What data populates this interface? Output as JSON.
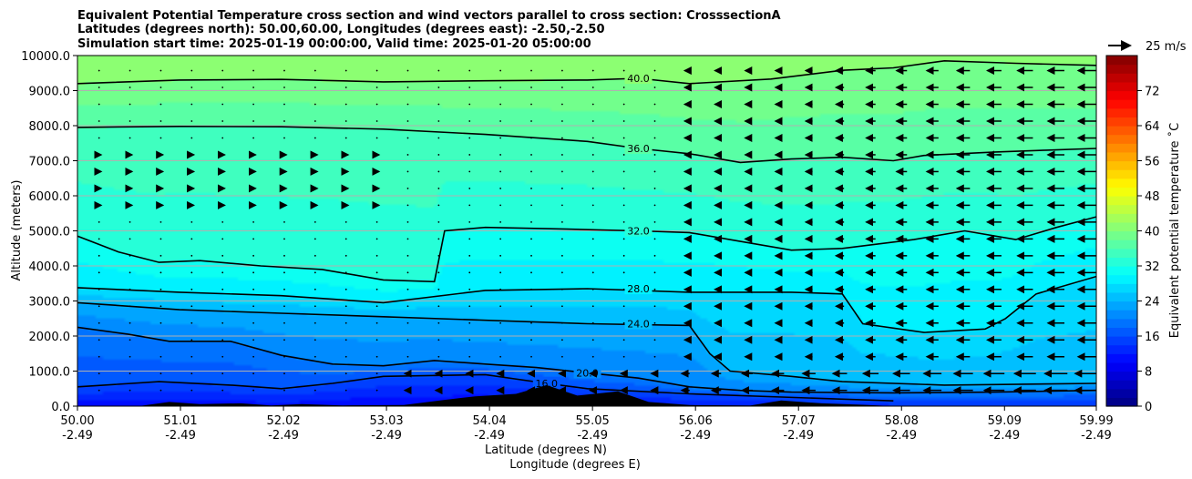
{
  "chart_data": {
    "type": "heatmap",
    "title": [
      "Equivalent Potential Temperature cross section and wind vectors parallel to cross section: CrosssectionA",
      "Latitudes (degrees north): 50.00,60.00, Longitudes (degrees east): -2.50,-2.50",
      "Simulation start time: 2025-01-19 00:00:00, Valid time: 2025-01-20 05:00:00"
    ],
    "xlabel": [
      "Latitude (degrees N)",
      "Longitude (degrees E)"
    ],
    "ylabel": "Altitude (meters)",
    "xlim": [
      50.0,
      59.99
    ],
    "ylim": [
      0,
      10000
    ],
    "x_ticks": [
      {
        "value": 50.0,
        "lat": "50.00",
        "lon": "-2.49"
      },
      {
        "value": 51.01,
        "lat": "51.01",
        "lon": "-2.49"
      },
      {
        "value": 52.02,
        "lat": "52.02",
        "lon": "-2.49"
      },
      {
        "value": 53.03,
        "lat": "53.03",
        "lon": "-2.49"
      },
      {
        "value": 54.04,
        "lat": "54.04",
        "lon": "-2.49"
      },
      {
        "value": 55.05,
        "lat": "55.05",
        "lon": "-2.49"
      },
      {
        "value": 56.06,
        "lat": "56.06",
        "lon": "-2.49"
      },
      {
        "value": 57.07,
        "lat": "57.07",
        "lon": "-2.49"
      },
      {
        "value": 58.08,
        "lat": "58.08",
        "lon": "-2.49"
      },
      {
        "value": 59.09,
        "lat": "59.09",
        "lon": "-2.49"
      },
      {
        "value": 59.99,
        "lat": "59.99",
        "lon": "-2.49"
      }
    ],
    "y_ticks": [
      {
        "value": 0,
        "label": "0.0"
      },
      {
        "value": 1000,
        "label": "1000.0"
      },
      {
        "value": 2000,
        "label": "2000.0"
      },
      {
        "value": 3000,
        "label": "3000.0"
      },
      {
        "value": 4000,
        "label": "4000.0"
      },
      {
        "value": 5000,
        "label": "5000.0"
      },
      {
        "value": 6000,
        "label": "6000.0"
      },
      {
        "value": 7000,
        "label": "7000.0"
      },
      {
        "value": 8000,
        "label": "8000.0"
      },
      {
        "value": 9000,
        "label": "9000.0"
      },
      {
        "value": 10000,
        "label": "10000.0"
      }
    ],
    "grid": "horizontal",
    "colorbar": {
      "label": "Equivalent potential temperature ˚C",
      "range": [
        0,
        80
      ],
      "ticks": [
        {
          "value": 0,
          "label": "0"
        },
        {
          "value": 8,
          "label": "8"
        },
        {
          "value": 16,
          "label": "16"
        },
        {
          "value": 24,
          "label": "24"
        },
        {
          "value": 32,
          "label": "32"
        },
        {
          "value": 40,
          "label": "40"
        },
        {
          "value": 48,
          "label": "48"
        },
        {
          "value": 56,
          "label": "56"
        },
        {
          "value": 64,
          "label": "64"
        },
        {
          "value": 72,
          "label": "72"
        }
      ]
    },
    "quiver_key": {
      "label": "25 m/s",
      "speed": 25
    },
    "contours": [
      {
        "level": 40,
        "label": "40.0",
        "label_lat": 55.5,
        "label_alt": 9350,
        "points": [
          [
            50.0,
            9200
          ],
          [
            51.0,
            9300
          ],
          [
            52.0,
            9320
          ],
          [
            53.0,
            9250
          ],
          [
            54.0,
            9280
          ],
          [
            55.0,
            9300
          ],
          [
            55.5,
            9350
          ],
          [
            56.0,
            9200
          ],
          [
            56.8,
            9330
          ],
          [
            57.5,
            9580
          ],
          [
            58.0,
            9650
          ],
          [
            58.5,
            9850
          ],
          [
            59.2,
            9780
          ],
          [
            59.99,
            9720
          ]
        ]
      },
      {
        "level": 36,
        "label": "36.0",
        "label_lat": 55.5,
        "label_alt": 7350,
        "points": [
          [
            50.0,
            7950
          ],
          [
            51.0,
            7980
          ],
          [
            52.0,
            7970
          ],
          [
            53.0,
            7900
          ],
          [
            54.0,
            7750
          ],
          [
            55.0,
            7550
          ],
          [
            55.5,
            7350
          ],
          [
            56.0,
            7200
          ],
          [
            56.5,
            6950
          ],
          [
            57.0,
            7050
          ],
          [
            57.5,
            7100
          ],
          [
            58.0,
            7000
          ],
          [
            58.3,
            7150
          ],
          [
            59.0,
            7250
          ],
          [
            59.5,
            7300
          ],
          [
            59.99,
            7350
          ]
        ]
      },
      {
        "level": 32,
        "label": "32.0",
        "label_lat": 55.5,
        "label_alt": 5000,
        "points": [
          [
            50.0,
            4850
          ],
          [
            50.4,
            4400
          ],
          [
            50.8,
            4100
          ],
          [
            51.2,
            4150
          ],
          [
            51.8,
            4000
          ],
          [
            52.4,
            3900
          ],
          [
            53.0,
            3600
          ],
          [
            53.5,
            3550
          ],
          [
            53.6,
            5000
          ],
          [
            54.0,
            5100
          ],
          [
            54.8,
            5050
          ],
          [
            55.5,
            5000
          ],
          [
            56.0,
            4950
          ],
          [
            56.5,
            4700
          ],
          [
            57.0,
            4450
          ],
          [
            57.5,
            4500
          ],
          [
            58.2,
            4750
          ],
          [
            58.7,
            5000
          ],
          [
            59.2,
            4750
          ],
          [
            59.6,
            5100
          ],
          [
            59.99,
            5400
          ]
        ]
      },
      {
        "level": 28,
        "label": "28.0",
        "label_lat": 55.5,
        "label_alt": 3350,
        "points": [
          [
            50.0,
            3380
          ],
          [
            51.0,
            3250
          ],
          [
            52.0,
            3150
          ],
          [
            53.0,
            2950
          ],
          [
            54.0,
            3300
          ],
          [
            55.0,
            3350
          ],
          [
            56.0,
            3250
          ],
          [
            57.0,
            3250
          ],
          [
            57.5,
            3200
          ],
          [
            57.7,
            2350
          ],
          [
            58.3,
            2100
          ],
          [
            58.9,
            2200
          ],
          [
            59.1,
            2500
          ],
          [
            59.4,
            3200
          ],
          [
            59.99,
            3700
          ]
        ]
      },
      {
        "level": 24,
        "label": "24.0",
        "label_lat": 55.5,
        "label_alt": 2350,
        "points": [
          [
            50.0,
            2950
          ],
          [
            51.0,
            2750
          ],
          [
            52.0,
            2650
          ],
          [
            53.0,
            2550
          ],
          [
            54.0,
            2450
          ],
          [
            55.0,
            2350
          ],
          [
            56.0,
            2300
          ],
          [
            56.2,
            1500
          ],
          [
            56.4,
            1000
          ],
          [
            57.0,
            850
          ],
          [
            57.5,
            700
          ],
          [
            58.5,
            600
          ],
          [
            59.99,
            650
          ]
        ]
      },
      {
        "level": 20,
        "label": "20.0",
        "label_lat": 55.0,
        "label_alt": 950,
        "points": [
          [
            50.0,
            2250
          ],
          [
            50.5,
            2050
          ],
          [
            50.9,
            1850
          ],
          [
            51.5,
            1850
          ],
          [
            52.0,
            1450
          ],
          [
            52.5,
            1200
          ],
          [
            53.0,
            1150
          ],
          [
            53.5,
            1300
          ],
          [
            54.0,
            1200
          ],
          [
            54.5,
            1100
          ],
          [
            55.0,
            950
          ],
          [
            55.5,
            800
          ],
          [
            56.0,
            550
          ],
          [
            56.5,
            450
          ],
          [
            57.0,
            400
          ],
          [
            58.0,
            380
          ],
          [
            59.0,
            400
          ],
          [
            59.99,
            450
          ]
        ]
      },
      {
        "level": 16,
        "label": "16.0",
        "label_lat": 54.6,
        "label_alt": 650,
        "points": [
          [
            50.0,
            550
          ],
          [
            50.8,
            700
          ],
          [
            51.5,
            600
          ],
          [
            52.0,
            500
          ],
          [
            52.5,
            650
          ],
          [
            53.0,
            850
          ],
          [
            54.0,
            900
          ],
          [
            54.6,
            650
          ],
          [
            55.0,
            500
          ],
          [
            56.0,
            350
          ],
          [
            57.5,
            200
          ],
          [
            58.0,
            150
          ]
        ]
      }
    ],
    "terrain": [
      {
        "lat": 50.6,
        "height": 0
      },
      {
        "lat": 50.9,
        "height": 120
      },
      {
        "lat": 51.2,
        "height": 60
      },
      {
        "lat": 51.6,
        "height": 80
      },
      {
        "lat": 51.9,
        "height": 20
      },
      {
        "lat": 52.2,
        "height": 60
      },
      {
        "lat": 52.6,
        "height": 20
      },
      {
        "lat": 53.2,
        "height": 30
      },
      {
        "lat": 53.6,
        "height": 180
      },
      {
        "lat": 53.9,
        "height": 280
      },
      {
        "lat": 54.3,
        "height": 350
      },
      {
        "lat": 54.6,
        "height": 600
      },
      {
        "lat": 54.9,
        "height": 300
      },
      {
        "lat": 55.3,
        "height": 420
      },
      {
        "lat": 55.6,
        "height": 120
      },
      {
        "lat": 56.0,
        "height": 30
      },
      {
        "lat": 56.6,
        "height": 20
      },
      {
        "lat": 56.9,
        "height": 160
      },
      {
        "lat": 57.3,
        "height": 80
      },
      {
        "lat": 57.7,
        "height": 40
      },
      {
        "lat": 58.0,
        "height": 0
      }
    ],
    "colormap": "jet"
  }
}
